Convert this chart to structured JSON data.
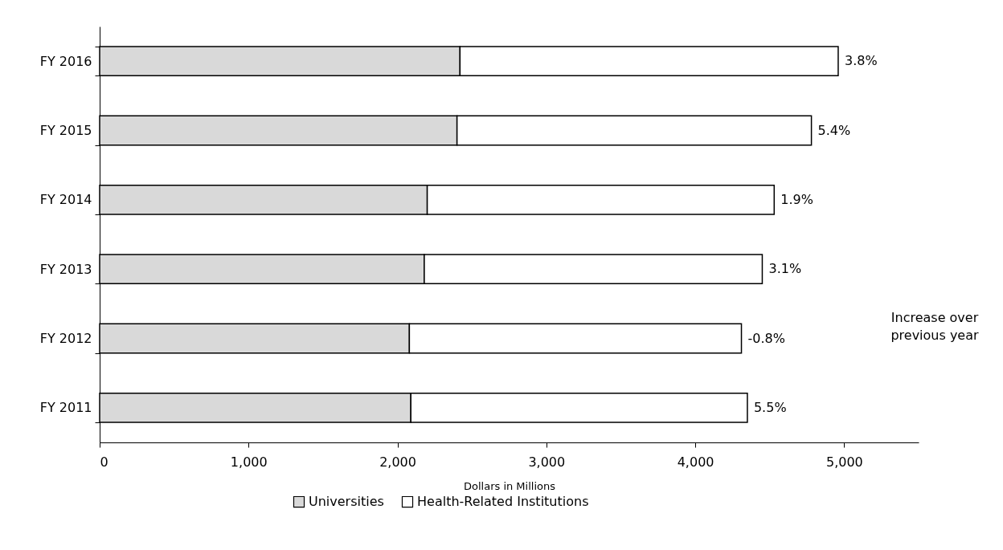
{
  "chart_data": {
    "type": "bar",
    "orientation": "horizontal",
    "stacked": true,
    "xlabel": "Dollars in Millions",
    "categories": [
      "FY 2016",
      "FY 2015",
      "FY 2014",
      "FY 2013",
      "FY 2012",
      "FY 2011"
    ],
    "series": [
      {
        "name": "Universities",
        "color": "#d9d9d9",
        "values": [
          2420,
          2400,
          2200,
          2180,
          2080,
          2090
        ]
      },
      {
        "name": "Health-Related Institutions",
        "color": "#ffffff",
        "values": [
          2540,
          2380,
          2330,
          2270,
          2230,
          2260
        ]
      }
    ],
    "xlim": [
      0,
      5500
    ],
    "xticks": [
      {
        "value": 0,
        "label": "0"
      },
      {
        "value": 1000,
        "label": "1,000"
      },
      {
        "value": 2000,
        "label": "2,000"
      },
      {
        "value": 3000,
        "label": "3,000"
      },
      {
        "value": 4000,
        "label": "4,000"
      },
      {
        "value": 5000,
        "label": "5,000"
      }
    ],
    "annotations": [
      {
        "text": "3.8%",
        "x": 4960,
        "y": "FY 2016"
      },
      {
        "text": "5.4%",
        "x": 4780,
        "y": "FY 2015"
      },
      {
        "text": "1.9%",
        "x": 4530,
        "y": "FY 2014"
      },
      {
        "text": "3.1%",
        "x": 4450,
        "y": "FY 2013"
      },
      {
        "text": "-0.8%",
        "x": 4310,
        "y": "FY 2012"
      },
      {
        "text": "5.5%",
        "x": 4350,
        "y": "FY 2011"
      },
      "Increase over previous year"
    ],
    "legend": "bottom",
    "grid": false
  }
}
